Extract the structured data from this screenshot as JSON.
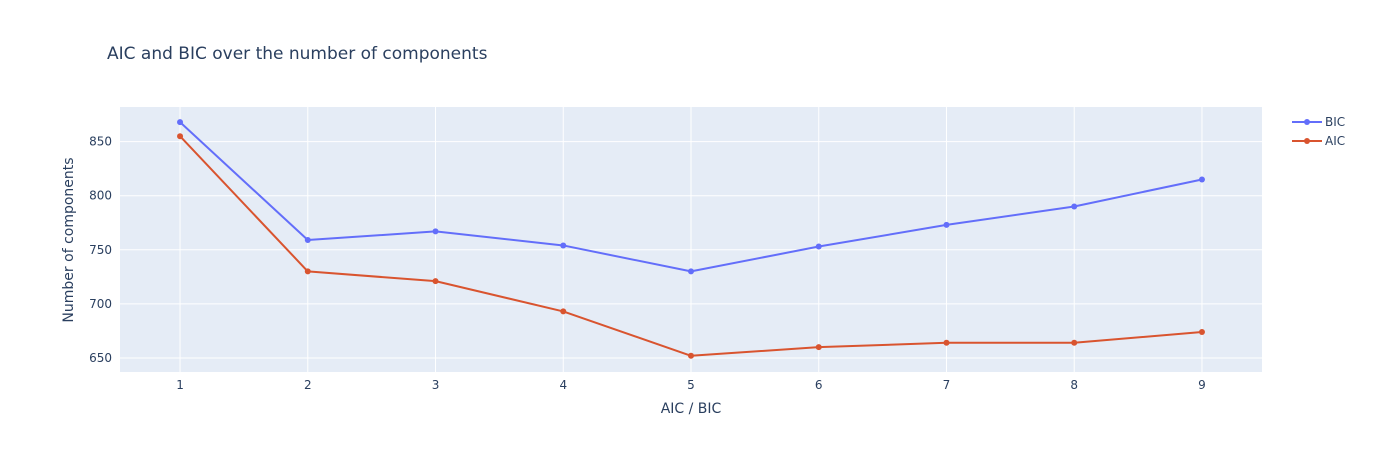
{
  "chart_data": {
    "type": "line",
    "title": "AIC and BIC over the number of components",
    "xlabel": "AIC / BIC",
    "ylabel": "Number of components",
    "x": [
      1,
      2,
      3,
      4,
      5,
      6,
      7,
      8,
      9
    ],
    "xlim": [
      0.53,
      9.47
    ],
    "ylim": [
      637,
      882
    ],
    "yticks": [
      650,
      700,
      750,
      800,
      850
    ],
    "grid": true,
    "legend_position": "top-right",
    "plot_background": "#e5ecf6",
    "series": [
      {
        "name": "BIC",
        "color": "#636efa",
        "values": [
          868,
          759,
          767,
          754,
          730,
          753,
          773,
          790,
          815
        ]
      },
      {
        "name": "AIC",
        "color": "#d9542f",
        "values": [
          855,
          730,
          721,
          693,
          652,
          660,
          664,
          664,
          674
        ]
      }
    ]
  }
}
